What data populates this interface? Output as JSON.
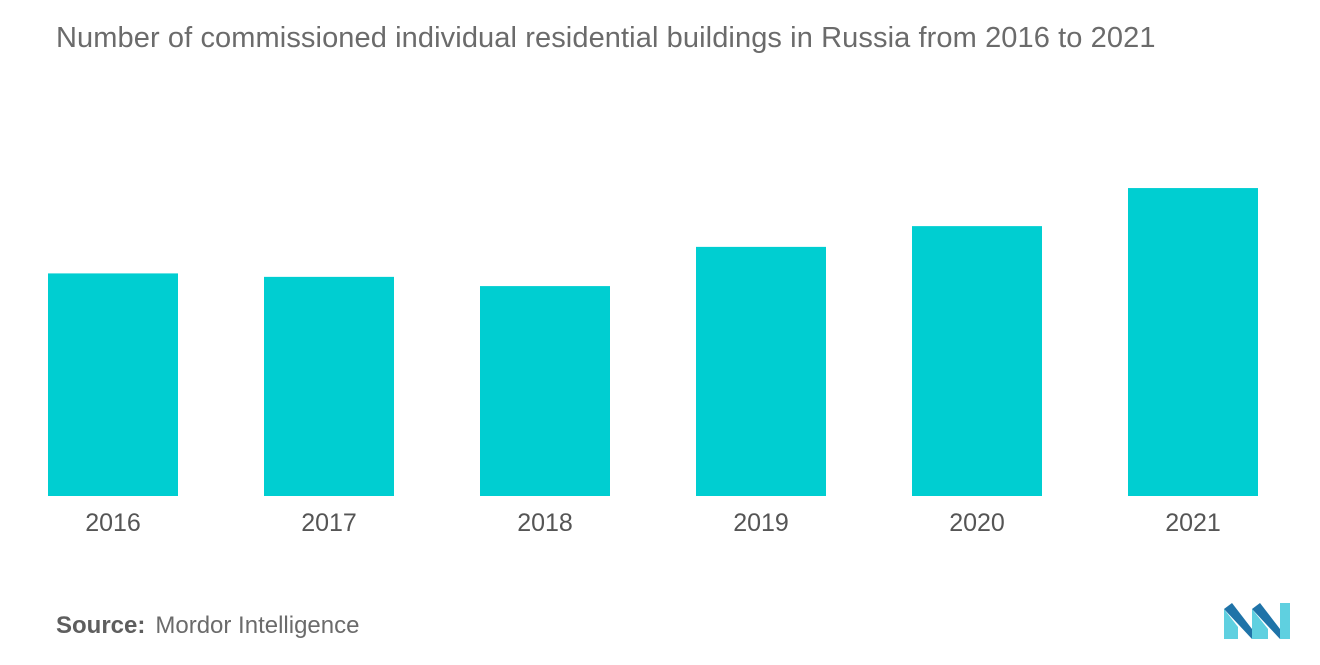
{
  "colors": {
    "bar": "#00ced1",
    "logo_light": "#5fd0e0",
    "logo_dark": "#1f73a8"
  },
  "source": {
    "label": "Source:",
    "text": "Mordor Intelligence"
  },
  "logo": {
    "icon": "mordor-intelligence-logo-icon"
  },
  "chart_data": {
    "type": "bar",
    "title": "Number of commissioned individual residential buildings in Russia from 2016 to 2021",
    "categories": [
      "2016",
      "2017",
      "2018",
      "2019",
      "2020",
      "2021"
    ],
    "values": [
      193,
      190,
      182,
      216,
      234,
      267
    ],
    "xlabel": "",
    "ylabel": "",
    "ylim": [
      0,
      300
    ],
    "grid": false,
    "legend": "none"
  }
}
